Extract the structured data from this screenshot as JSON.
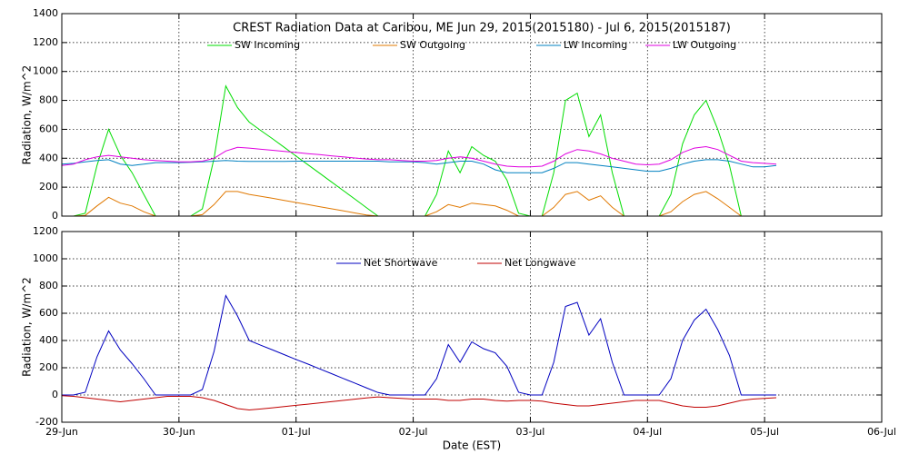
{
  "chart_data": [
    {
      "type": "line",
      "title": "CREST Radiation Data at Caribou, ME   Jun 29, 2015(2015180) - Jul  6, 2015(2015187)",
      "y_label": "Radiation, W/m^2",
      "x": [
        0,
        0.1,
        0.2,
        0.3,
        0.4,
        0.5,
        0.6,
        0.7,
        0.8,
        0.9,
        1,
        1.1,
        1.2,
        1.3,
        1.4,
        1.5,
        1.6,
        1.7,
        1.8,
        1.9,
        2,
        2.1,
        2.2,
        2.3,
        2.4,
        2.5,
        2.6,
        2.7,
        2.8,
        2.9,
        3,
        3.1,
        3.2,
        3.3,
        3.4,
        3.5,
        3.6,
        3.7,
        3.8,
        3.9,
        4,
        4.1,
        4.2,
        4.3,
        4.4,
        4.5,
        4.6,
        4.7,
        4.8,
        4.9,
        5,
        5.1,
        5.2,
        5.3,
        5.4,
        5.5,
        5.6,
        5.7,
        5.8,
        5.9,
        6,
        6.1
      ],
      "xlim": [
        0,
        7
      ],
      "xticks": [
        0,
        1,
        2,
        3,
        4,
        5,
        6,
        7
      ],
      "ylim": [
        0,
        1400
      ],
      "yticks": [
        0,
        200,
        400,
        600,
        800,
        1000,
        1200,
        1400
      ],
      "grid": true,
      "series": [
        {
          "name": "SW Incoming",
          "color": "#00dd00",
          "values": [
            0,
            0,
            20,
            350,
            600,
            420,
            300,
            150,
            0,
            0,
            0,
            0,
            50,
            400,
            900,
            750,
            650,
            591,
            534,
            475,
            415,
            356,
            297,
            237,
            178,
            119,
            59,
            0,
            0,
            0,
            0,
            0,
            150,
            450,
            300,
            480,
            420,
            380,
            250,
            20,
            0,
            0,
            300,
            800,
            850,
            550,
            700,
            300,
            0,
            0,
            0,
            0,
            150,
            500,
            700,
            800,
            600,
            350,
            0,
            0,
            0,
            0
          ]
        },
        {
          "name": "SW Outgoing",
          "color": "#e07800",
          "values": [
            0,
            0,
            5,
            70,
            130,
            90,
            70,
            30,
            0,
            0,
            0,
            0,
            10,
            80,
            170,
            170,
            150,
            137,
            123,
            108,
            94,
            80,
            65,
            51,
            37,
            22,
            8,
            0,
            0,
            0,
            0,
            0,
            30,
            80,
            60,
            90,
            80,
            70,
            40,
            0,
            0,
            0,
            60,
            150,
            170,
            110,
            140,
            60,
            0,
            0,
            0,
            0,
            30,
            100,
            150,
            170,
            120,
            60,
            0,
            0,
            0,
            0
          ]
        },
        {
          "name": "LW Incoming",
          "color": "#0080c0",
          "values": [
            360,
            365,
            375,
            385,
            390,
            360,
            350,
            360,
            370,
            370,
            370,
            372,
            375,
            380,
            385,
            380,
            378,
            378,
            378,
            378,
            380,
            380,
            380,
            380,
            380,
            380,
            380,
            380,
            375,
            375,
            375,
            370,
            360,
            370,
            380,
            380,
            360,
            320,
            300,
            300,
            300,
            300,
            330,
            370,
            370,
            360,
            350,
            340,
            330,
            320,
            310,
            310,
            330,
            360,
            380,
            390,
            390,
            380,
            360,
            340,
            340,
            350
          ]
        },
        {
          "name": "LW Outgoing",
          "color": "#e000e0",
          "values": [
            350,
            360,
            390,
            410,
            420,
            410,
            400,
            390,
            385,
            380,
            375,
            375,
            380,
            400,
            450,
            475,
            470,
            462,
            455,
            447,
            440,
            432,
            425,
            417,
            410,
            402,
            395,
            390,
            390,
            385,
            380,
            380,
            385,
            400,
            410,
            400,
            380,
            360,
            345,
            340,
            340,
            345,
            380,
            430,
            460,
            450,
            430,
            400,
            380,
            360,
            355,
            360,
            390,
            440,
            470,
            480,
            460,
            420,
            380,
            370,
            365,
            360
          ]
        }
      ]
    },
    {
      "type": "line",
      "y_label": "Radiation, W/m^2",
      "x_label": "Date (EST)",
      "x": [
        0,
        0.1,
        0.2,
        0.3,
        0.4,
        0.5,
        0.6,
        0.7,
        0.8,
        0.9,
        1,
        1.1,
        1.2,
        1.3,
        1.4,
        1.5,
        1.6,
        1.7,
        1.8,
        1.9,
        2,
        2.1,
        2.2,
        2.3,
        2.4,
        2.5,
        2.6,
        2.7,
        2.8,
        2.9,
        3,
        3.1,
        3.2,
        3.3,
        3.4,
        3.5,
        3.6,
        3.7,
        3.8,
        3.9,
        4,
        4.1,
        4.2,
        4.3,
        4.4,
        4.5,
        4.6,
        4.7,
        4.8,
        4.9,
        5,
        5.1,
        5.2,
        5.3,
        5.4,
        5.5,
        5.6,
        5.7,
        5.8,
        5.9,
        6,
        6.1
      ],
      "xlim": [
        0,
        7
      ],
      "xticks": [
        {
          "value": 0,
          "label": "29-Jun"
        },
        {
          "value": 1,
          "label": "30-Jun"
        },
        {
          "value": 2,
          "label": "01-Jul"
        },
        {
          "value": 3,
          "label": "02-Jul"
        },
        {
          "value": 4,
          "label": "03-Jul"
        },
        {
          "value": 5,
          "label": "04-Jul"
        },
        {
          "value": 6,
          "label": "05-Jul"
        },
        {
          "value": 7,
          "label": "06-Jul"
        }
      ],
      "ylim": [
        -200,
        1200
      ],
      "yticks": [
        -200,
        0,
        200,
        400,
        600,
        800,
        1000,
        1200
      ],
      "grid": true,
      "series": [
        {
          "name": "Net Shortwave",
          "color": "#0000c0",
          "values": [
            0,
            0,
            20,
            280,
            470,
            330,
            230,
            120,
            0,
            0,
            0,
            0,
            40,
            320,
            730,
            580,
            400,
            365,
            331,
            296,
            261,
            227,
            192,
            157,
            122,
            88,
            53,
            18,
            0,
            0,
            0,
            0,
            120,
            370,
            240,
            390,
            340,
            310,
            210,
            20,
            0,
            0,
            240,
            650,
            680,
            440,
            560,
            240,
            0,
            0,
            0,
            0,
            120,
            400,
            550,
            630,
            480,
            290,
            0,
            0,
            0,
            0
          ]
        },
        {
          "name": "Net Longwave",
          "color": "#c00000",
          "values": [
            -5,
            -10,
            -20,
            -30,
            -40,
            -50,
            -40,
            -30,
            -20,
            -10,
            -10,
            -10,
            -20,
            -40,
            -70,
            -100,
            -110,
            -103,
            -94,
            -85,
            -76,
            -67,
            -58,
            -49,
            -40,
            -31,
            -22,
            -14,
            -20,
            -25,
            -30,
            -30,
            -30,
            -40,
            -40,
            -30,
            -30,
            -40,
            -45,
            -40,
            -40,
            -45,
            -60,
            -70,
            -80,
            -80,
            -70,
            -60,
            -50,
            -40,
            -40,
            -40,
            -60,
            -80,
            -90,
            -90,
            -80,
            -60,
            -40,
            -30,
            -25,
            -20
          ]
        }
      ]
    }
  ]
}
